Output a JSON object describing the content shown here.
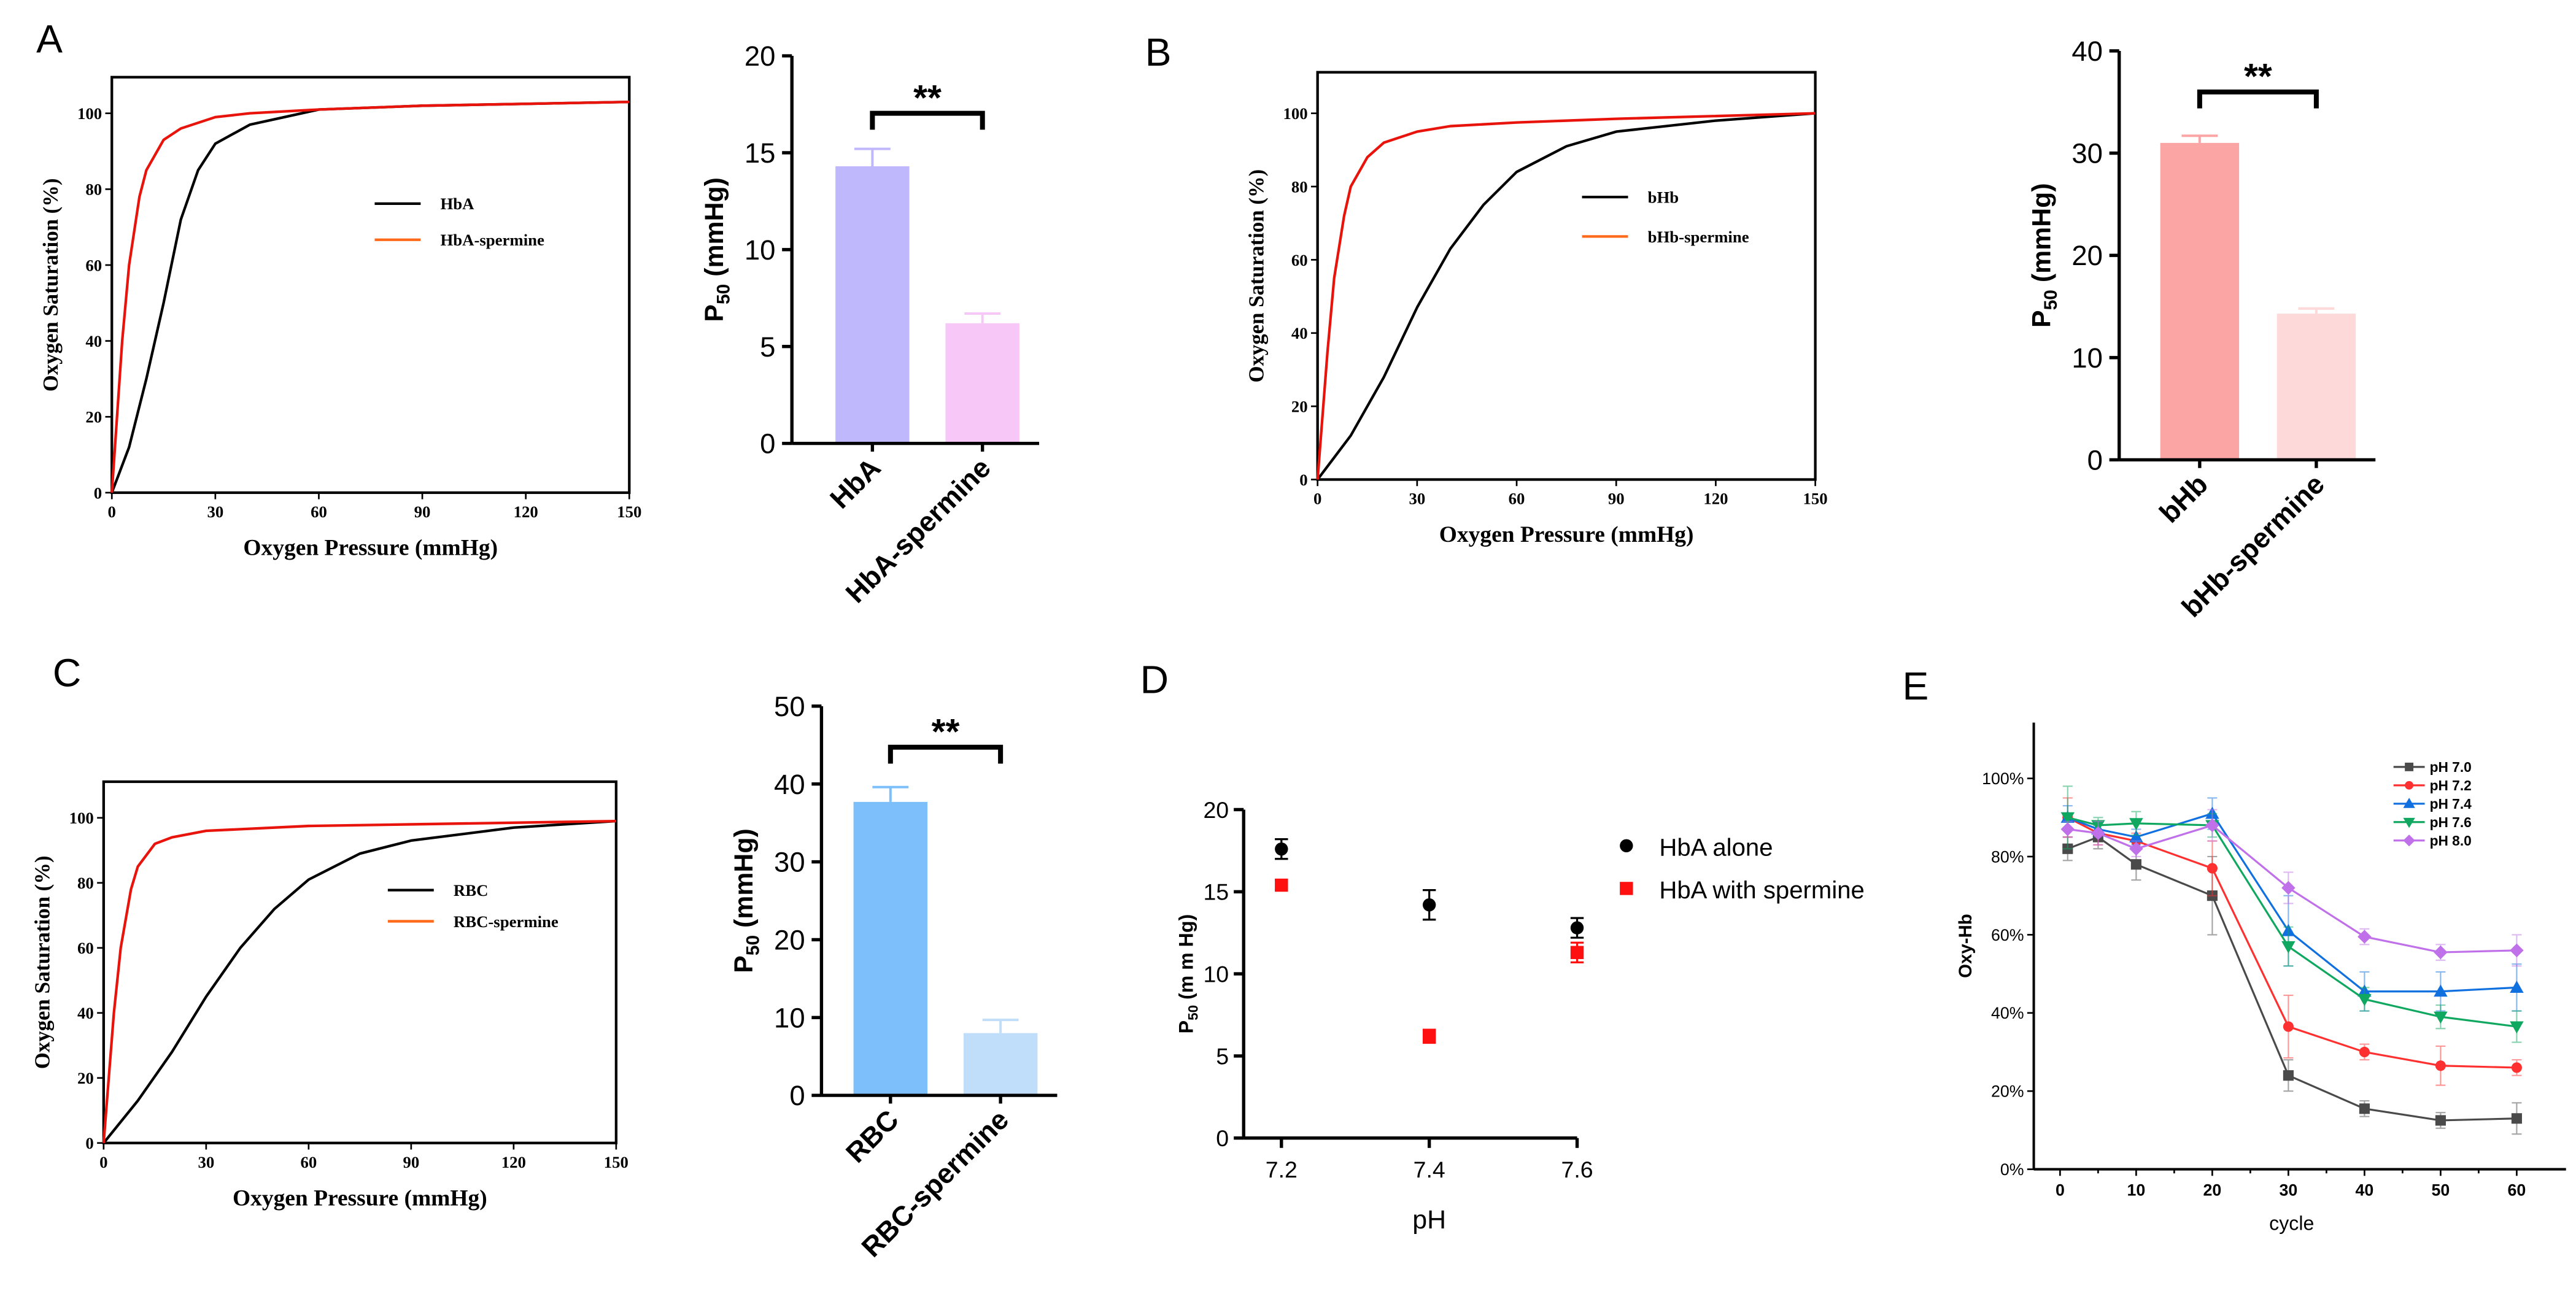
{
  "panel_letters": [
    "A",
    "B",
    "C",
    "D",
    "E"
  ],
  "chart_data": [
    {
      "id": "A-curve",
      "panel": "A",
      "type": "line",
      "xlabel": "Oxygen Pressure (mmHg)",
      "ylabel": "Oxygen Saturation (%)",
      "xlim": [
        0,
        150
      ],
      "ylim": [
        0,
        110
      ],
      "xticks": [
        0,
        30,
        60,
        90,
        120,
        150
      ],
      "yticks": [
        0,
        20,
        40,
        60,
        80,
        100
      ],
      "legend": "top-right",
      "series": [
        {
          "name": "HbA",
          "color": "#000000",
          "legend_color": "#000000",
          "x": [
            0,
            5,
            10,
            15,
            20,
            25,
            30,
            40,
            50,
            60,
            90,
            120,
            150
          ],
          "y": [
            0,
            12,
            30,
            50,
            72,
            85,
            92,
            97,
            99,
            101,
            102,
            102.5,
            103
          ]
        },
        {
          "name": "HbA-spermine",
          "color": "#e8140c",
          "legend_color": "#ff6a1a",
          "x": [
            0,
            3,
            5,
            8,
            10,
            15,
            20,
            30,
            40,
            60,
            90,
            150
          ],
          "y": [
            0,
            40,
            60,
            78,
            85,
            93,
            96,
            99,
            100,
            101,
            102,
            103
          ]
        }
      ]
    },
    {
      "id": "A-bar",
      "panel": "A",
      "type": "bar",
      "ylabel_parts": [
        "P",
        "50",
        " (mmHg)"
      ],
      "ylim": [
        0,
        20
      ],
      "yticks": [
        0,
        5,
        10,
        15,
        20
      ],
      "categories": [
        "HbA",
        "HbA-spermine"
      ],
      "values": [
        14.3,
        6.2
      ],
      "errors": [
        0.9,
        0.5
      ],
      "colors": [
        "#c0b8fc",
        "#f7c8f7"
      ],
      "significance": "**"
    },
    {
      "id": "B-curve",
      "panel": "B",
      "type": "line",
      "xlabel": "Oxygen Pressure (mmHg)",
      "ylabel": "Oxygen Saturation (%)",
      "xlim": [
        0,
        150
      ],
      "ylim": [
        0,
        110
      ],
      "xticks": [
        0,
        30,
        60,
        90,
        120,
        150
      ],
      "yticks": [
        0,
        20,
        40,
        60,
        80,
        100
      ],
      "legend": "top-right",
      "series": [
        {
          "name": "bHb",
          "color": "#000000",
          "legend_color": "#000000",
          "x": [
            0,
            5,
            10,
            20,
            30,
            40,
            50,
            60,
            75,
            90,
            120,
            150
          ],
          "y": [
            0,
            6,
            12,
            28,
            47,
            63,
            75,
            84,
            91,
            95,
            98,
            100
          ]
        },
        {
          "name": "bHb-spermine",
          "color": "#e8140c",
          "legend_color": "#ff6a1a",
          "x": [
            0,
            3,
            5,
            8,
            10,
            15,
            20,
            30,
            40,
            60,
            90,
            150
          ],
          "y": [
            0,
            35,
            55,
            72,
            80,
            88,
            92,
            95,
            96.5,
            97.5,
            98.5,
            100
          ]
        }
      ]
    },
    {
      "id": "B-bar",
      "panel": "B",
      "type": "bar",
      "ylabel_parts": [
        "P",
        "50",
        " (mmHg)"
      ],
      "ylim": [
        0,
        40
      ],
      "yticks": [
        0,
        10,
        20,
        30,
        40
      ],
      "categories": [
        "bHb",
        "bHb-spermine"
      ],
      "values": [
        31.0,
        14.3
      ],
      "errors": [
        0.7,
        0.5
      ],
      "colors": [
        "#fca5a5",
        "#fdd9d9"
      ],
      "significance": "**"
    },
    {
      "id": "C-curve",
      "panel": "C",
      "type": "line",
      "xlabel": "Oxygen Pressure (mmHg)",
      "ylabel": "Oxygen Saturation (%)",
      "xlim": [
        0,
        150
      ],
      "ylim": [
        0,
        110
      ],
      "xticks": [
        0,
        30,
        60,
        90,
        120,
        150
      ],
      "yticks": [
        0,
        20,
        40,
        60,
        80,
        100
      ],
      "legend": "center-right",
      "series": [
        {
          "name": "RBC",
          "color": "#000000",
          "legend_color": "#000000",
          "x": [
            0,
            10,
            20,
            30,
            40,
            50,
            60,
            75,
            90,
            120,
            150
          ],
          "y": [
            0,
            13,
            28,
            45,
            60,
            72,
            81,
            89,
            93,
            97,
            99
          ]
        },
        {
          "name": "RBC-spermine",
          "color": "#e8140c",
          "legend_color": "#ff6a1a",
          "x": [
            0,
            3,
            5,
            8,
            10,
            15,
            20,
            30,
            60,
            90,
            150
          ],
          "y": [
            0,
            40,
            60,
            78,
            85,
            92,
            94,
            96,
            97.5,
            98,
            99
          ]
        }
      ]
    },
    {
      "id": "C-bar",
      "panel": "C",
      "type": "bar",
      "ylabel_parts": [
        "P",
        "50",
        " (mmHg)"
      ],
      "ylim": [
        0,
        50
      ],
      "yticks": [
        0,
        10,
        20,
        30,
        40,
        50
      ],
      "categories": [
        "RBC",
        "RBC-spermine"
      ],
      "values": [
        37.7,
        8.0
      ],
      "errors": [
        1.9,
        1.7
      ],
      "colors": [
        "#7cbffa",
        "#c0defa"
      ],
      "significance": "**"
    },
    {
      "id": "D",
      "panel": "D",
      "type": "scatter",
      "xlabel": "pH",
      "ylabel_parts": [
        "P",
        "50",
        " (m m Hg)"
      ],
      "ylim": [
        0,
        20
      ],
      "yticks": [
        0,
        5,
        10,
        15,
        20
      ],
      "xticks": [
        "7.2",
        "7.4",
        "7.6"
      ],
      "legend": "top-right",
      "series": [
        {
          "name": "HbA alone",
          "marker": "circle",
          "color": "#000000",
          "x": [
            7.2,
            7.4,
            7.6
          ],
          "y": [
            17.6,
            14.2,
            12.8
          ],
          "err": [
            0.6,
            0.9,
            0.6
          ]
        },
        {
          "name": "HbA with spermine",
          "marker": "square",
          "color": "#ff1010",
          "x": [
            7.2,
            7.4,
            7.6
          ],
          "y": [
            15.4,
            6.2,
            11.3
          ],
          "err": [
            0.3,
            0.4,
            0.6
          ]
        }
      ]
    },
    {
      "id": "E",
      "panel": "E",
      "type": "line",
      "xlabel": "cycle",
      "ylabel": "Oxy-Hb",
      "xlim": [
        0,
        60
      ],
      "ylim": [
        0,
        100
      ],
      "xticks": [
        0,
        10,
        20,
        30,
        40,
        50,
        60
      ],
      "yticks": [
        "0%",
        "20%",
        "40%",
        "60%",
        "80%",
        "100%"
      ],
      "legend": "top-right",
      "x": [
        1,
        5,
        10,
        20,
        30,
        40,
        50,
        60
      ],
      "series": [
        {
          "name": "pH 7.0",
          "marker": "square",
          "color": "#4a4a4a",
          "y": [
            82,
            85,
            78,
            70,
            24,
            15.5,
            12.5,
            13
          ],
          "err": [
            3,
            3,
            4,
            10,
            4,
            2,
            2,
            4
          ]
        },
        {
          "name": "pH 7.2",
          "marker": "circle",
          "color": "#ff3030",
          "y": [
            90,
            86,
            84,
            77,
            36.5,
            30,
            26.5,
            26
          ],
          "err": [
            5,
            3,
            2,
            7,
            8,
            2,
            5,
            2
          ]
        },
        {
          "name": "pH 7.4",
          "marker": "triangle-up",
          "color": "#1070e0",
          "y": [
            90,
            87,
            85,
            91,
            61,
            45.5,
            45.5,
            46.5
          ],
          "err": [
            3,
            2,
            2,
            4,
            9,
            5,
            5,
            6
          ]
        },
        {
          "name": "pH 7.6",
          "marker": "triangle-down",
          "color": "#10a860",
          "y": [
            90,
            88,
            88.5,
            88,
            57,
            43.5,
            39,
            36.5
          ],
          "err": [
            8,
            2,
            3,
            3,
            5,
            3,
            3,
            4
          ]
        },
        {
          "name": "pH 8.0",
          "marker": "diamond",
          "color": "#c070e8",
          "y": [
            87,
            86,
            82,
            88,
            72,
            59.5,
            55.5,
            56
          ],
          "err": [
            2,
            3,
            2,
            4,
            4,
            2,
            2,
            4
          ]
        }
      ]
    }
  ]
}
